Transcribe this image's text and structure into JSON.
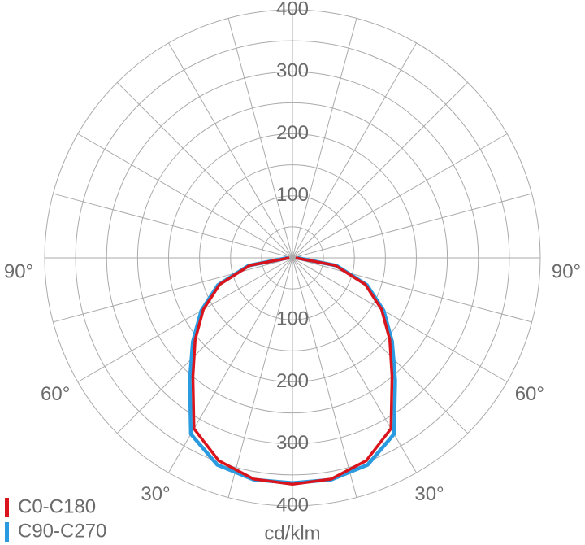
{
  "chart_data": {
    "type": "polar-line",
    "unit": "cd/klm",
    "x": [
      -90,
      -80,
      -70,
      -60,
      -50,
      -40,
      -30,
      -20,
      -10,
      0,
      10,
      20,
      30,
      40,
      50,
      60,
      70,
      80,
      90
    ],
    "series": [
      {
        "name": "C90-C270",
        "color": "#2a9be0",
        "values": [
          8,
          72,
          128,
          170,
          210,
          258,
          328,
          355,
          363,
          363,
          363,
          355,
          328,
          258,
          210,
          170,
          128,
          72,
          8
        ]
      },
      {
        "name": "C0-C180",
        "color": "#d9141c",
        "values": [
          5,
          70,
          125,
          166,
          205,
          250,
          318,
          348,
          362,
          365,
          362,
          348,
          318,
          250,
          205,
          166,
          125,
          70,
          5
        ]
      }
    ],
    "rlim": [
      0,
      400
    ],
    "rticks": [
      100,
      200,
      300,
      400
    ],
    "rgrid": [
      50,
      100,
      150,
      200,
      250,
      300,
      350,
      400
    ],
    "angle_ticks": [
      {
        "value": -90,
        "label": "90°"
      },
      {
        "value": -60,
        "label": "60°"
      },
      {
        "value": -30,
        "label": "30°"
      },
      {
        "value": 30,
        "label": "30°"
      },
      {
        "value": 60,
        "label": "60°"
      },
      {
        "value": 90,
        "label": "90°"
      }
    ],
    "legend": "bottom-left"
  }
}
